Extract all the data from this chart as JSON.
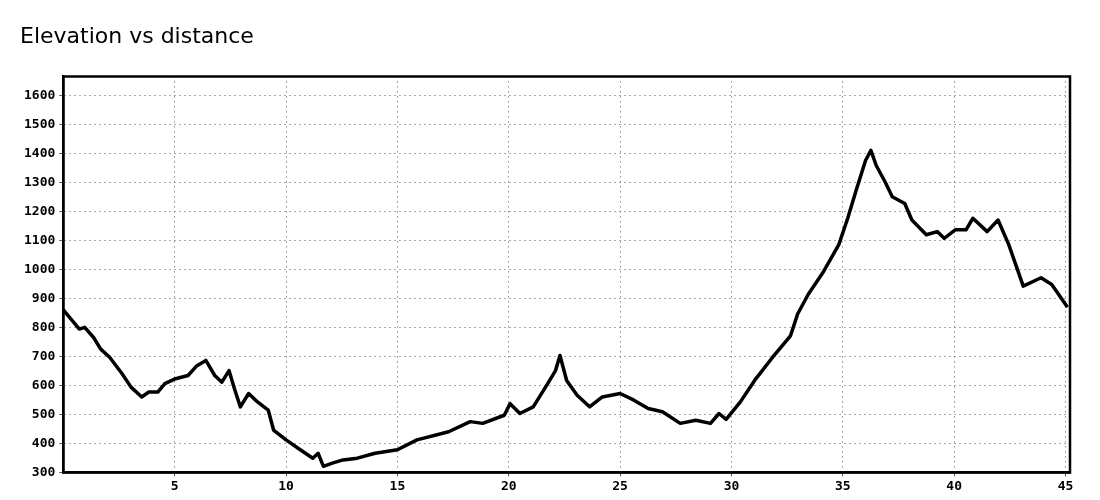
{
  "chart_data": {
    "type": "line",
    "title": "Elevation vs distance",
    "xlim": [
      0,
      45.2
    ],
    "xticks": [
      5,
      10,
      15,
      20,
      25,
      30,
      35,
      40,
      45
    ],
    "ylim": [
      300,
      1665
    ],
    "yticks": [
      300,
      400,
      500,
      600,
      700,
      800,
      900,
      1000,
      1100,
      1200,
      1300,
      1400,
      1500,
      1600
    ],
    "grid": true,
    "legend": false,
    "marker": "none",
    "line_style": "solid",
    "series": [
      {
        "color": "#000000",
        "x": [
          0,
          0.72,
          0.96,
          1.36,
          1.68,
          2.08,
          2.64,
          3.04,
          3.52,
          3.84,
          4.24,
          4.56,
          5.04,
          5.6,
          6.0,
          6.4,
          6.8,
          7.12,
          7.44,
          7.68,
          7.95,
          8.32,
          8.72,
          9.2,
          9.44,
          10.0,
          10.64,
          11.2,
          11.44,
          11.68,
          12.08,
          12.56,
          13.2,
          14.0,
          15.0,
          15.88,
          17.3,
          18.27,
          18.83,
          19.8,
          20.06,
          20.5,
          21.1,
          21.7,
          22.1,
          22.3,
          22.6,
          23.07,
          23.63,
          24.2,
          25.0,
          25.62,
          26.26,
          26.9,
          27.7,
          28.4,
          29.06,
          29.44,
          29.76,
          30.4,
          31.04,
          31.85,
          32.65,
          32.97,
          33.45,
          34.1,
          34.82,
          35.22,
          35.62,
          36.02,
          36.26,
          36.5,
          36.9,
          37.22,
          37.78,
          38.1,
          38.75,
          39.24,
          39.55,
          40.05,
          40.53,
          40.84,
          41.48,
          41.97,
          42.45,
          43.1,
          43.9,
          44.38,
          45.05
        ],
        "values": [
          860,
          794,
          800,
          765,
          725,
          697,
          640,
          594,
          560,
          577,
          577,
          606,
          623,
          634,
          668,
          686,
          634,
          611,
          651,
          589,
          526,
          572,
          543,
          515,
          446,
          412,
          378,
          349,
          366,
          321,
          332,
          343,
          349,
          366,
          378,
          412,
          440,
          475,
          469,
          497,
          537,
          503,
          526,
          600,
          651,
          703,
          617,
          566,
          526,
          560,
          572,
          549,
          520,
          509,
          469,
          480,
          469,
          503,
          483,
          543,
          617,
          697,
          771,
          846,
          914,
          988,
          1085,
          1176,
          1278,
          1375,
          1410,
          1358,
          1301,
          1250,
          1227,
          1170,
          1119,
          1130,
          1107,
          1136,
          1136,
          1176,
          1130,
          1170,
          1085,
          942,
          971,
          948,
          874
        ]
      }
    ]
  }
}
